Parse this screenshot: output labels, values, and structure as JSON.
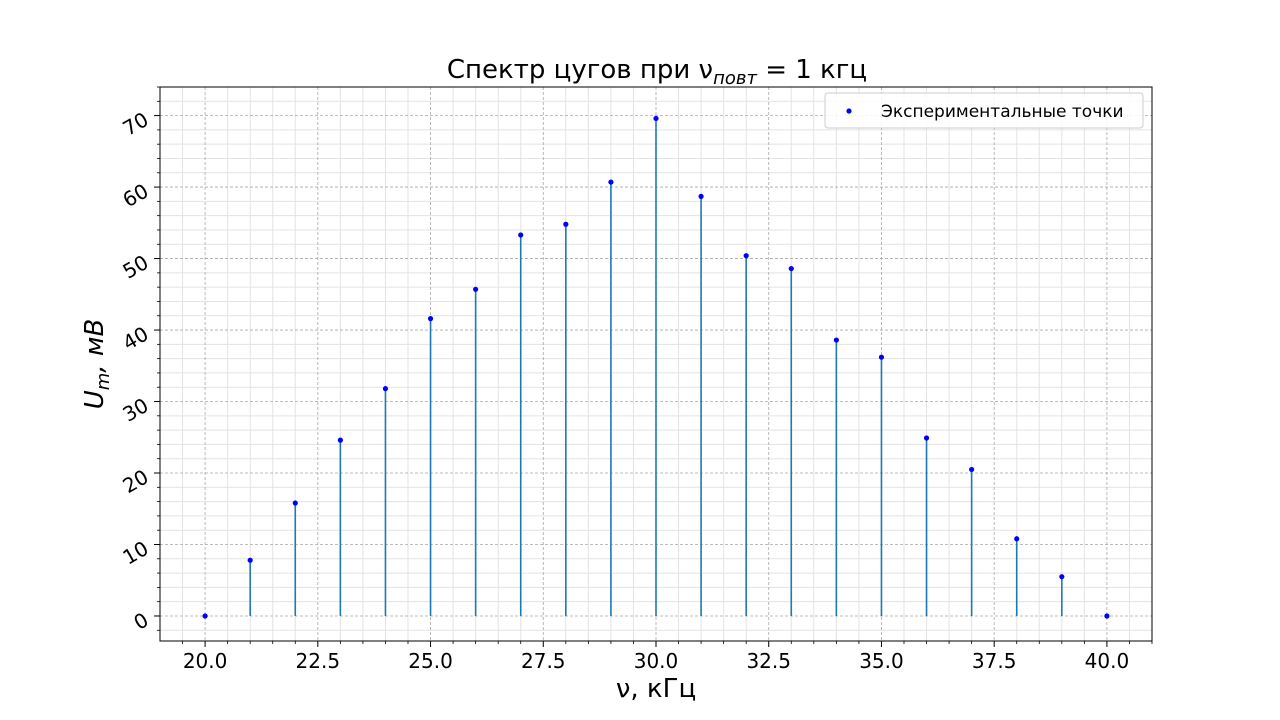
{
  "chart_data": {
    "type": "stem",
    "title": "Спектр цугов при ν",
    "title_subscript": "повт",
    "title_suffix": " = 1 кгц",
    "xlabel": "ν, кГц",
    "ylabel": "U",
    "ylabel_subscript": "m",
    "ylabel_suffix": ", мВ",
    "xlim": [
      19.0,
      41.0
    ],
    "ylim": [
      -3.5,
      74.0
    ],
    "x_ticks": [
      "20.0",
      "22.5",
      "25.0",
      "27.5",
      "30.0",
      "32.5",
      "35.0",
      "37.5",
      "40.0"
    ],
    "y_ticks": [
      "0",
      "10",
      "20",
      "30",
      "40",
      "50",
      "60",
      "70"
    ],
    "grid": true,
    "legend_position": "top-right",
    "series": [
      {
        "name": "Экспериментальные точки",
        "marker_color": "#0000ff",
        "stem_color": "#1f77b4",
        "x": [
          20,
          21,
          22,
          23,
          24,
          25,
          26,
          27,
          28,
          29,
          30,
          31,
          32,
          33,
          34,
          35,
          36,
          37,
          38,
          39,
          40
        ],
        "y": [
          0,
          7.8,
          15.8,
          24.6,
          31.8,
          41.6,
          45.7,
          53.3,
          54.8,
          60.7,
          69.6,
          58.7,
          50.4,
          48.6,
          38.6,
          36.2,
          24.9,
          20.5,
          10.8,
          5.5,
          0
        ]
      }
    ]
  }
}
